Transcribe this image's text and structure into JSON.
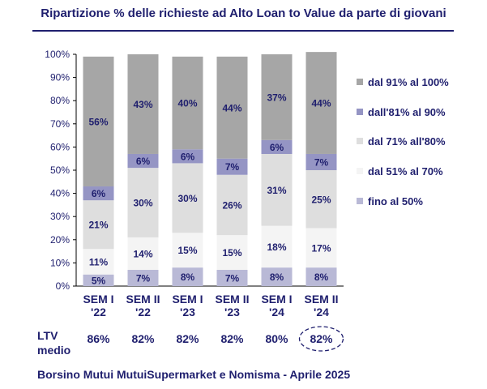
{
  "title": "Ripartizione %  delle richieste ad Alto Loan to Value da parte di giovani",
  "ltv": {
    "label_line1": "LTV",
    "label_line2": "medio",
    "values": [
      "86%",
      "82%",
      "82%",
      "82%",
      "80%",
      "82%"
    ],
    "highlighted_index": 5
  },
  "footer": "Borsino Mutui MutuiSupermarket e Nomisma - Aprile 2025",
  "colors": {
    "text": "#1f1f6e",
    "fino_50": "#b9b9d6",
    "dal_51_70": "#f4f4f4",
    "dal_71_80": "#dedede",
    "dal_81_90": "#9595c4",
    "dal_91_100": "#a6a6a6"
  },
  "chart_data": {
    "type": "bar",
    "stacked": true,
    "categories": [
      [
        "SEM I",
        "'22"
      ],
      [
        "SEM II",
        "'22"
      ],
      [
        "SEM I",
        "'23"
      ],
      [
        "SEM II",
        "'23"
      ],
      [
        "SEM I",
        "'24"
      ],
      [
        "SEM II",
        "'24"
      ]
    ],
    "ylim": [
      0,
      100
    ],
    "yticks": [
      "0%",
      "10%",
      "20%",
      "30%",
      "40%",
      "50%",
      "60%",
      "70%",
      "80%",
      "90%",
      "100%"
    ],
    "legend_position": "right",
    "series": [
      {
        "name": "fino al 50%",
        "color": "#b9b9d6",
        "values": [
          5,
          7,
          8,
          7,
          8,
          8
        ],
        "labels": [
          "5%",
          "7%",
          "8%",
          "7%",
          "8%",
          "8%"
        ]
      },
      {
        "name": "dal 51% al 70%",
        "color": "#f4f4f4",
        "values": [
          11,
          14,
          15,
          15,
          18,
          17
        ],
        "labels": [
          "11%",
          "14%",
          "15%",
          "15%",
          "18%",
          "17%"
        ]
      },
      {
        "name": "dal 71% all'80%",
        "color": "#dedede",
        "values": [
          21,
          30,
          30,
          26,
          31,
          25
        ],
        "labels": [
          "21%",
          "30%",
          "30%",
          "26%",
          "31%",
          "25%"
        ]
      },
      {
        "name": "dall'81% al 90%",
        "color": "#9595c4",
        "values": [
          6,
          6,
          6,
          7,
          6,
          7
        ],
        "labels": [
          "6%",
          "6%",
          "6%",
          "7%",
          "6%",
          "7%"
        ]
      },
      {
        "name": "dal 91% al 100%",
        "color": "#a6a6a6",
        "values": [
          56,
          43,
          40,
          44,
          37,
          44
        ],
        "labels": [
          "56%",
          "43%",
          "40%",
          "44%",
          "37%",
          "44%"
        ]
      }
    ]
  }
}
